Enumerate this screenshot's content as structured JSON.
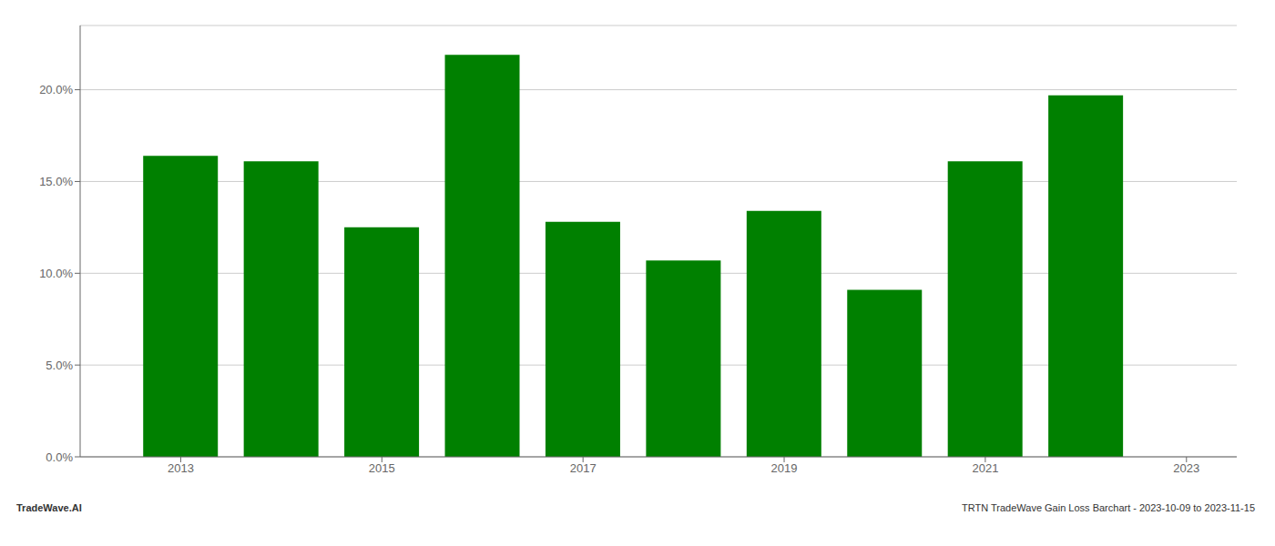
{
  "chart_data": {
    "type": "bar",
    "x": [
      2013,
      2014,
      2015,
      2016,
      2017,
      2018,
      2019,
      2020,
      2021,
      2022
    ],
    "values": [
      0.164,
      0.161,
      0.125,
      0.219,
      0.128,
      0.107,
      0.134,
      0.091,
      0.161,
      0.197
    ],
    "color": "#008000",
    "xlim": [
      2012.0,
      2023.5
    ],
    "xticks": [
      2013,
      2015,
      2017,
      2019,
      2021,
      2023
    ],
    "ylim": [
      0.0,
      0.235
    ],
    "yticks": [
      {
        "value": 0.0,
        "label": "0.0%"
      },
      {
        "value": 0.05,
        "label": "5.0%"
      },
      {
        "value": 0.1,
        "label": "10.0%"
      },
      {
        "value": 0.15,
        "label": "15.0%"
      },
      {
        "value": 0.2,
        "label": "20.0%"
      }
    ],
    "grid": true,
    "annotations": [
      "TradeWave.AI",
      "TRTN TradeWave Gain Loss Barchart - 2023-10-09 to 2023-11-15"
    ]
  }
}
